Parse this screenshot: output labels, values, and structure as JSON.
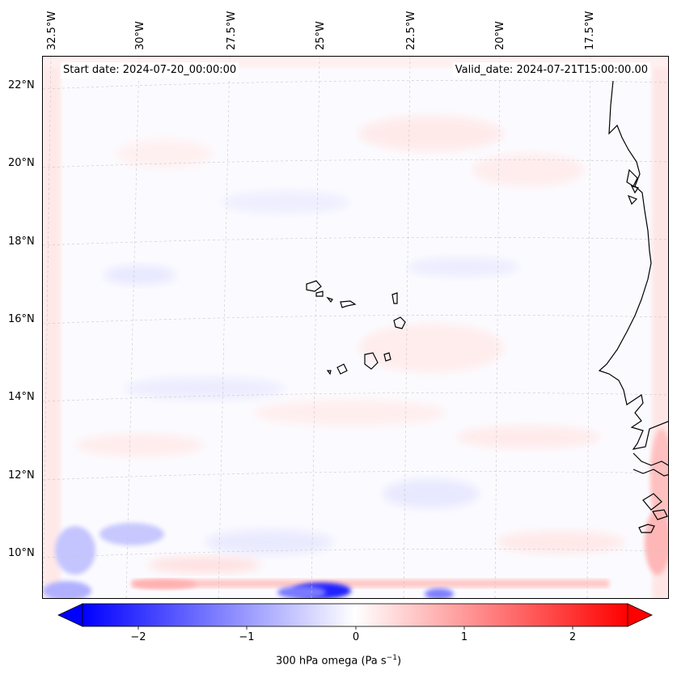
{
  "header": {
    "start_date": "Start date: 2024-07-20_00:00:00",
    "valid_date": "Valid_date: 2024-07-21T15:00:00.00"
  },
  "axes": {
    "longitude_labels": [
      "32.5°W",
      "30°W",
      "27.5°W",
      "25°W",
      "22.5°W",
      "20°W",
      "17.5°W"
    ],
    "latitude_labels": [
      "22°N",
      "20°N",
      "18°N",
      "16°N",
      "14°N",
      "12°N",
      "10°N"
    ]
  },
  "colorbar": {
    "label_text": "300 hPa omega (Pa s",
    "label_exponent": "−1",
    "label_close": ")",
    "ticks": [
      "−2",
      "−1",
      "0",
      "1",
      "2"
    ],
    "min_color": "#0000ff",
    "mid_color": "#ffffff",
    "max_color": "#ff0000"
  },
  "map": {
    "coastline_color": "#000000",
    "gridline_color": "#c8c8c8"
  }
}
